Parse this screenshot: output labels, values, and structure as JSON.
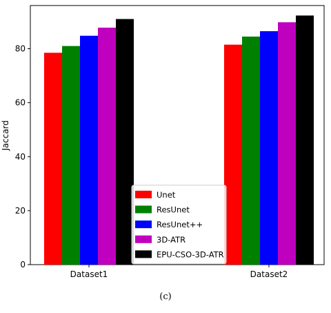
{
  "chart_data": {
    "type": "bar",
    "categories": [
      "Dataset1",
      "Dataset2"
    ],
    "series": [
      {
        "name": "Unet",
        "color": "#ff0000",
        "values": [
          78.5,
          81.5
        ]
      },
      {
        "name": "ResUnet",
        "color": "#008000",
        "values": [
          81.0,
          84.5
        ]
      },
      {
        "name": "ResUnet++",
        "color": "#0000ff",
        "values": [
          84.8,
          86.5
        ]
      },
      {
        "name": "3D-ATR",
        "color": "#bf00bf",
        "values": [
          87.8,
          89.8
        ]
      },
      {
        "name": "EPU-CSO-3D-ATR",
        "color": "#000000",
        "values": [
          91.0,
          92.3
        ]
      }
    ],
    "ylabel": "Jaccard",
    "xlabel": "",
    "ylim": [
      0,
      96
    ],
    "yticks": [
      0,
      20,
      40,
      60,
      80
    ],
    "legend_position": "lower-center",
    "grid": false
  },
  "caption": "(c)"
}
